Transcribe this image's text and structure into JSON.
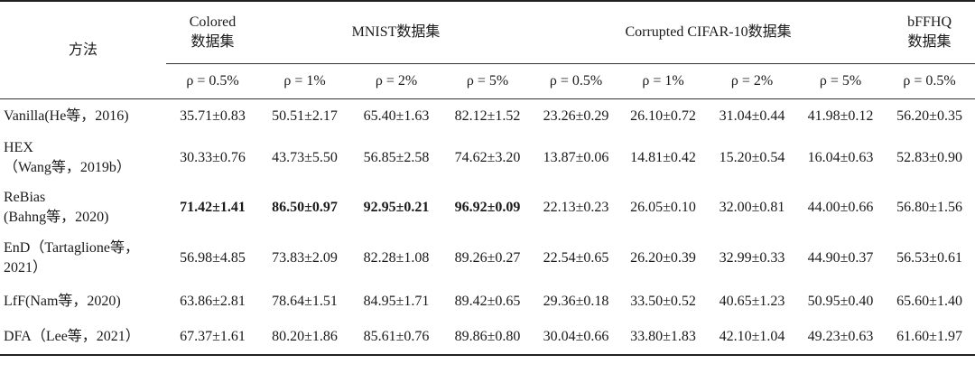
{
  "header": {
    "method_label": "方法",
    "group_colored": "Colored\n数据集",
    "group_colored_l1": "Colored",
    "group_colored_l2": "数据集",
    "group_mnist": "MNIST数据集",
    "group_cifar": "Corrupted CIFAR-10数据集",
    "group_bffhq_l1": "bFFHQ",
    "group_bffhq_l2": "数据集",
    "sub": [
      "ρ = 0.5%",
      "ρ = 1%",
      "ρ = 2%",
      "ρ = 5%",
      "ρ = 0.5%",
      "ρ = 1%",
      "ρ = 2%",
      "ρ = 5%",
      "ρ = 0.5%"
    ]
  },
  "rows": [
    {
      "method_l1": "Vanilla(He等，2016)",
      "method_l2": "",
      "cells": [
        "35.71±0.83",
        "50.51±2.17",
        "65.40±1.63",
        "82.12±1.52",
        "23.26±0.29",
        "26.10±0.72",
        "31.04±0.44",
        "41.98±0.12",
        "56.20±0.35"
      ]
    },
    {
      "method_l1": "HEX",
      "method_l2": "（Wang等，2019b）",
      "cells": [
        "30.33±0.76",
        "43.73±5.50",
        "56.85±2.58",
        "74.62±3.20",
        "13.87±0.06",
        "14.81±0.42",
        "15.20±0.54",
        "16.04±0.63",
        "52.83±0.90"
      ]
    },
    {
      "method_l1": "ReBias",
      "method_l2": "(Bahng等，2020)",
      "cells": [
        "71.42±1.41",
        "86.50±0.97",
        "92.95±0.21",
        "96.92±0.09",
        "22.13±0.23",
        "26.05±0.10",
        "32.00±0.81",
        "44.00±0.66",
        "56.80±1.56"
      ]
    },
    {
      "method_l1": "EnD（Tartaglione等，",
      "method_l2": "2021）",
      "cells": [
        "56.98±4.85",
        "73.83±2.09",
        "82.28±1.08",
        "89.26±0.27",
        "22.54±0.65",
        "26.20±0.39",
        "32.99±0.33",
        "44.90±0.37",
        "56.53±0.61"
      ]
    },
    {
      "method_l1": "LfF(Nam等，2020)",
      "method_l2": "",
      "cells": [
        "63.86±2.81",
        "78.64±1.51",
        "84.95±1.71",
        "89.42±0.65",
        "29.36±0.18",
        "33.50±0.52",
        "40.65±1.23",
        "50.95±0.40",
        "65.60±1.40"
      ]
    },
    {
      "method_l1": "DFA（Lee等，2021）",
      "method_l2": "",
      "cells": [
        "67.37±1.61",
        "80.20±1.86",
        "85.61±0.76",
        "89.86±0.80",
        "30.04±0.66",
        "33.80±1.83",
        "42.10±1.04",
        "49.23±0.63",
        "61.60±1.97"
      ]
    }
  ],
  "bold_cells": [
    [
      2,
      0
    ],
    [
      2,
      1
    ],
    [
      2,
      2
    ],
    [
      2,
      3
    ]
  ]
}
